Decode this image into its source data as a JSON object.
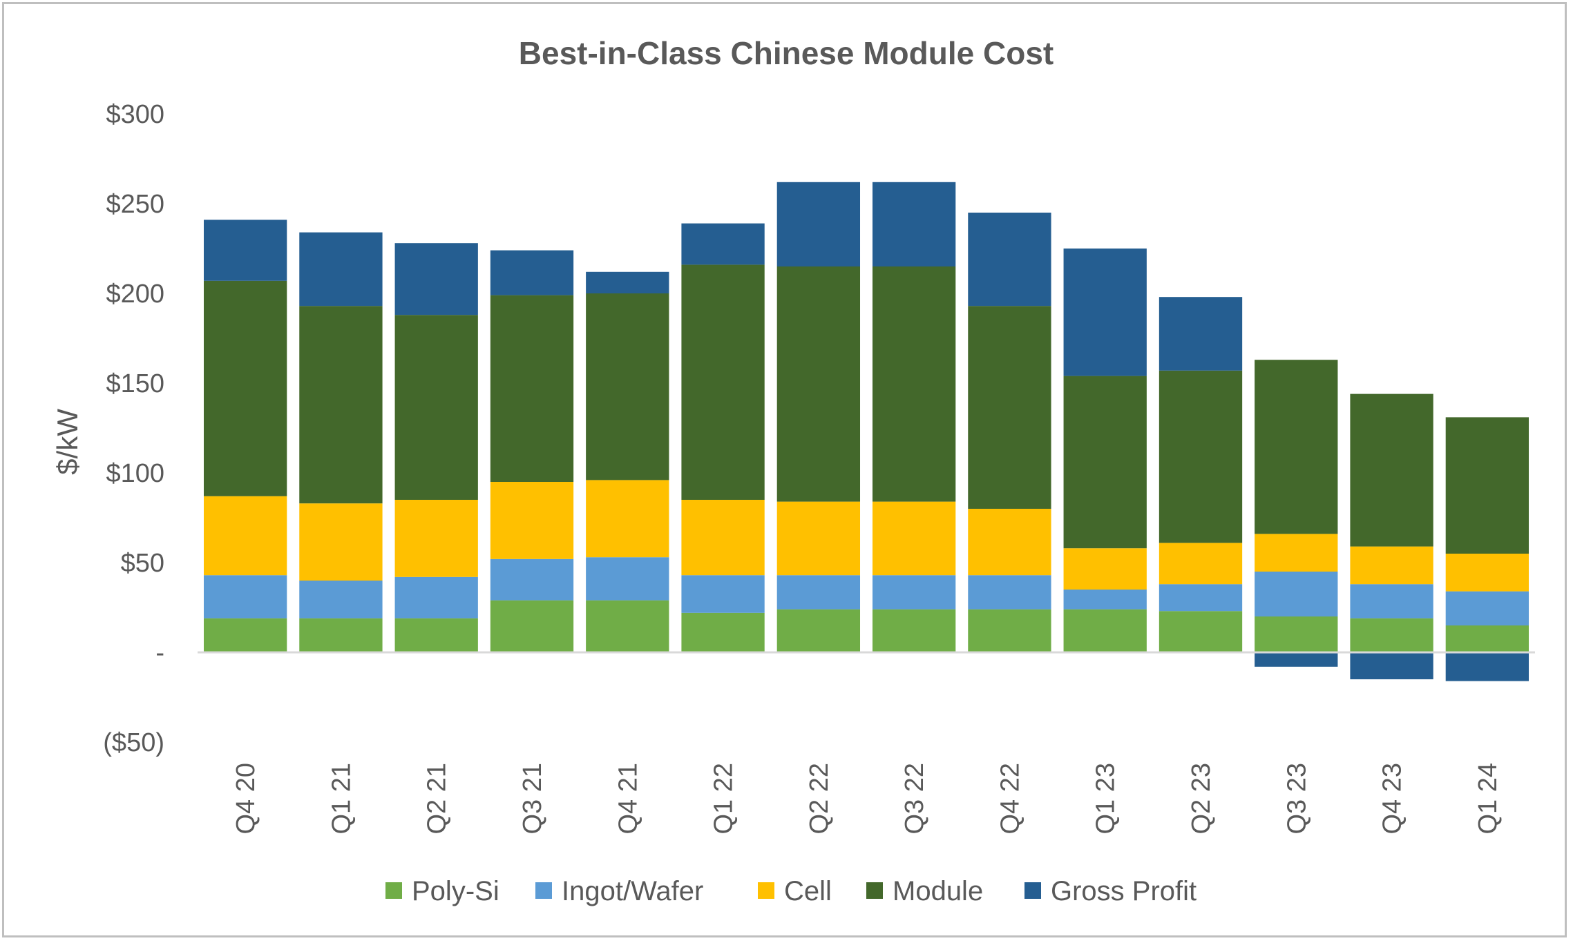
{
  "chart_data": {
    "type": "bar",
    "stacked": true,
    "title": "Best-in-Class Chinese Module Cost",
    "ylabel": "$/kW",
    "xlabel": "",
    "ylim": [
      -50,
      300
    ],
    "yticks": [
      {
        "value": 300,
        "label": "$300"
      },
      {
        "value": 250,
        "label": "$250"
      },
      {
        "value": 200,
        "label": "$200"
      },
      {
        "value": 150,
        "label": "$150"
      },
      {
        "value": 100,
        "label": "$100"
      },
      {
        "value": 50,
        "label": "$50"
      },
      {
        "value": 0,
        "label": "-"
      },
      {
        "value": -50,
        "label": "($50)"
      }
    ],
    "categories": [
      "Q4 20",
      "Q1 21",
      "Q2 21",
      "Q3 21",
      "Q4 21",
      "Q1 22",
      "Q2 22",
      "Q3 22",
      "Q4 22",
      "Q1 23",
      "Q2 23",
      "Q3 23",
      "Q4 23",
      "Q1 24"
    ],
    "series": [
      {
        "name": "Poly-Si",
        "color": "#70ad47",
        "values": [
          19,
          19,
          19,
          29,
          29,
          22,
          24,
          24,
          24,
          24,
          23,
          20,
          19,
          15
        ]
      },
      {
        "name": "Ingot/Wafer",
        "color": "#5b9bd5",
        "values": [
          24,
          21,
          23,
          23,
          24,
          21,
          19,
          19,
          19,
          11,
          15,
          25,
          19,
          19
        ]
      },
      {
        "name": "Cell",
        "color": "#ffc000",
        "values": [
          44,
          43,
          43,
          43,
          43,
          42,
          41,
          41,
          37,
          23,
          23,
          21,
          21,
          21
        ]
      },
      {
        "name": "Module",
        "color": "#43682b",
        "values": [
          120,
          110,
          103,
          104,
          104,
          131,
          131,
          131,
          113,
          96,
          96,
          97,
          85,
          76
        ]
      },
      {
        "name": "Gross Profit",
        "color": "#255e91",
        "values": [
          34,
          41,
          40,
          25,
          12,
          23,
          47,
          47,
          52,
          71,
          41,
          -8,
          -15,
          -16
        ]
      }
    ],
    "legend_position": "bottom",
    "grid": false
  }
}
